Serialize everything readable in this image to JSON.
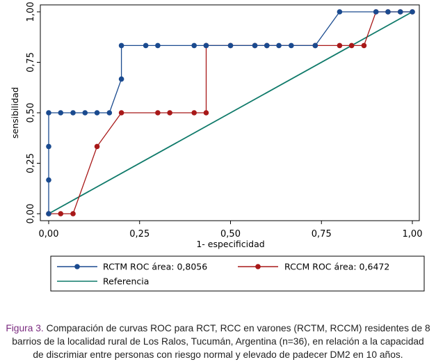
{
  "chart_data": {
    "type": "line",
    "xlabel": "1- especificidad",
    "ylabel": "sensibilidad",
    "xlim": [
      0,
      1
    ],
    "ylim": [
      0,
      1
    ],
    "xticks": [
      "0,00",
      "0,25",
      "0,50",
      "0,75",
      "1,00"
    ],
    "yticks": [
      "0,00",
      "0,25",
      "0,50",
      "0,75",
      "1,00"
    ],
    "grid": false,
    "legend_position": "bottom",
    "series": [
      {
        "name": "RCTM ROC área: 0,8056",
        "color": "#1a4a8f",
        "marker": "circle",
        "x": [
          0,
          0,
          0,
          0,
          0.033,
          0.067,
          0.1,
          0.133,
          0.167,
          0.2,
          0.2,
          0.267,
          0.3,
          0.4,
          0.433,
          0.5,
          0.567,
          0.6,
          0.633,
          0.667,
          0.733,
          0.8,
          0.9,
          0.933,
          0.967,
          1
        ],
        "y": [
          0,
          0.167,
          0.333,
          0.5,
          0.5,
          0.5,
          0.5,
          0.5,
          0.5,
          0.667,
          0.833,
          0.833,
          0.833,
          0.833,
          0.833,
          0.833,
          0.833,
          0.833,
          0.833,
          0.833,
          0.833,
          1,
          1,
          1,
          1,
          1
        ]
      },
      {
        "name": "RCCM ROC área: 0,6472",
        "color": "#a81818",
        "marker": "circle",
        "x": [
          0,
          0.033,
          0.067,
          0.133,
          0.2,
          0.3,
          0.333,
          0.4,
          0.433,
          0.433,
          0.5,
          0.567,
          0.6,
          0.733,
          0.8,
          0.833,
          0.867,
          0.9,
          0.933,
          0.967,
          1
        ],
        "y": [
          0,
          0,
          0,
          0.333,
          0.5,
          0.5,
          0.5,
          0.5,
          0.5,
          0.833,
          0.833,
          0.833,
          0.833,
          0.833,
          0.833,
          0.833,
          0.833,
          1,
          1,
          1,
          1
        ]
      },
      {
        "name": "Referencia",
        "color": "#0f7a6a",
        "marker": "none",
        "x": [
          0,
          1
        ],
        "y": [
          0,
          1
        ]
      }
    ]
  },
  "caption": {
    "label": "Figura 3.",
    "lines": [
      "Comparación de curvas ROC para RCT, RCC en varones (RCTM, RCCM) residentes de 8",
      "barrios de la localidad rural de Los Ralos, Tucumán, Argentina  (n=36), en relación a la capacidad",
      "de discrimiar entre personas con riesgo normal y elevado de padecer DM2 en 10 años."
    ]
  }
}
